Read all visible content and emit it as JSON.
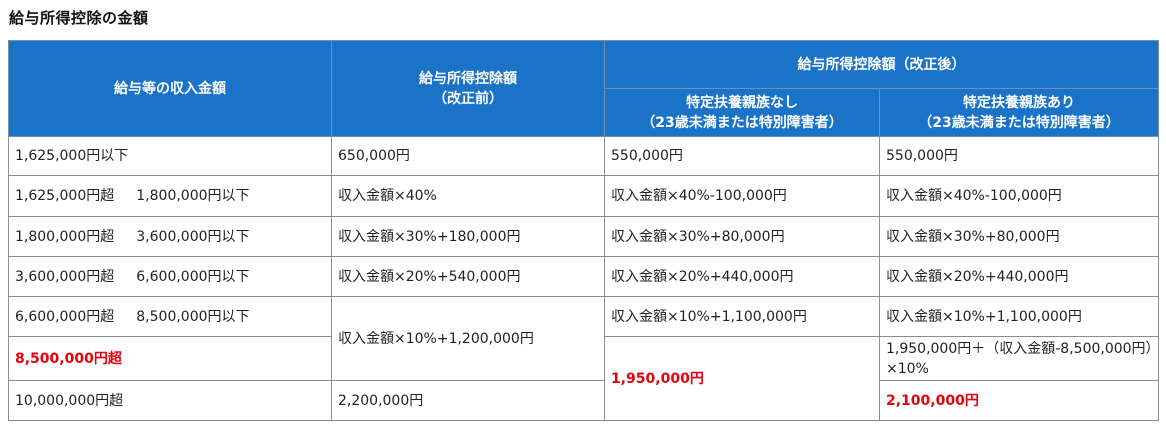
{
  "title": "給与所得控除の金額",
  "headers": {
    "income": "給与等の収入金額",
    "before_line1": "給与所得控除額",
    "before_line2": "（改正前）",
    "after": "給与所得控除額（改正後）",
    "no_dep_line1": "特定扶養親族なし",
    "no_dep_line2": "（23歳未満または特別障害者）",
    "with_dep_line1": "特定扶養親族あり",
    "with_dep_line2": "（23歳未満または特別障害者）"
  },
  "rows": [
    {
      "income_from": "1,625,000円以下",
      "income_to": "",
      "before": "650,000円",
      "no_dep": "550,000円",
      "with_dep": "550,000円"
    },
    {
      "income_from": "1,625,000円超",
      "income_to": "1,800,000円以下",
      "before": "収入金額×40%",
      "no_dep": "収入金額×40%-100,000円",
      "with_dep": "収入金額×40%-100,000円"
    },
    {
      "income_from": "1,800,000円超",
      "income_to": "3,600,000円以下",
      "before": "収入金額×30%+180,000円",
      "no_dep": "収入金額×30%+80,000円",
      "with_dep": "収入金額×30%+80,000円"
    },
    {
      "income_from": "3,600,000円超",
      "income_to": "6,600,000円以下",
      "before": "収入金額×20%+540,000円",
      "no_dep": "収入金額×20%+440,000円",
      "with_dep": "収入金額×20%+440,000円"
    },
    {
      "income_from": "6,600,000円超",
      "income_to": "8,500,000円以下",
      "before": "収入金額×10%+1,200,000円",
      "no_dep": "収入金額×10%+1,100,000円",
      "with_dep": "収入金額×10%+1,100,000円"
    },
    {
      "income_from": "8,500,000円超",
      "income_to": "",
      "before": "",
      "no_dep": "1,950,000円",
      "with_dep": "1,950,000円＋（収入金額-8,500,000円）×10%"
    },
    {
      "income_from": "10,000,000円超",
      "income_to": "",
      "before": "2,200,000円",
      "no_dep": "",
      "with_dep": "2,100,000円"
    }
  ],
  "colors": {
    "header_bg": "#1b73c8",
    "highlight_red": "#e8000b"
  }
}
